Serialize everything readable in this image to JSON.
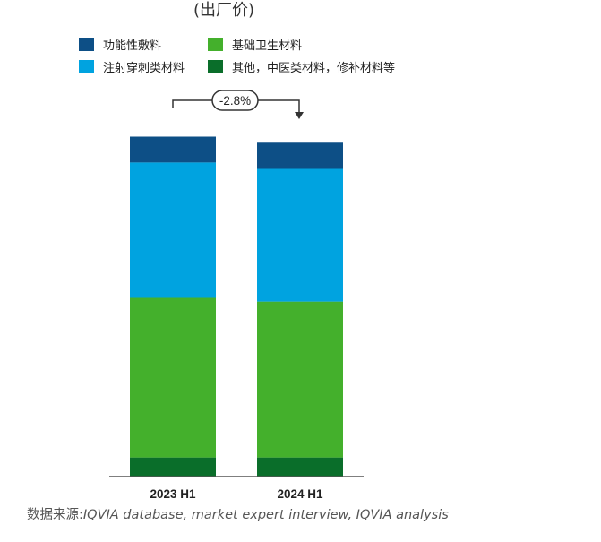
{
  "subtitle": "(出厂价)",
  "source": {
    "label": "数据来源:",
    "text": "IQVIA database, market expert interview, IQVIA analysis"
  },
  "legend": [
    {
      "name": "功能性敷料",
      "color": "#0d4f86"
    },
    {
      "name": "基础卫生材料",
      "color": "#44b02c"
    },
    {
      "name": "注射穿刺类材料",
      "color": "#00a3e0"
    },
    {
      "name": "其他，中医类材料，修补材料等",
      "color": "#0a6e2a"
    }
  ],
  "chart_data": {
    "type": "bar",
    "stacked": true,
    "categories": [
      "2023 H1",
      "2024 H1"
    ],
    "series": [
      {
        "name": "其他，中医类材料，修补材料等",
        "color": "#0a6e2a",
        "values": [
          5.7,
          5.7
        ]
      },
      {
        "name": "基础卫生材料",
        "color": "#44b02c",
        "values": [
          47.5,
          46.4
        ]
      },
      {
        "name": "注射穿刺类材料",
        "color": "#00a3e0",
        "values": [
          40.3,
          39.5
        ]
      },
      {
        "name": "功能性敷料",
        "color": "#0d4f86",
        "values": [
          7.7,
          7.8
        ]
      }
    ],
    "ylim": [
      0,
      100
    ],
    "grid": false,
    "legend_position": "top-left",
    "annotation": "-2.8%"
  }
}
